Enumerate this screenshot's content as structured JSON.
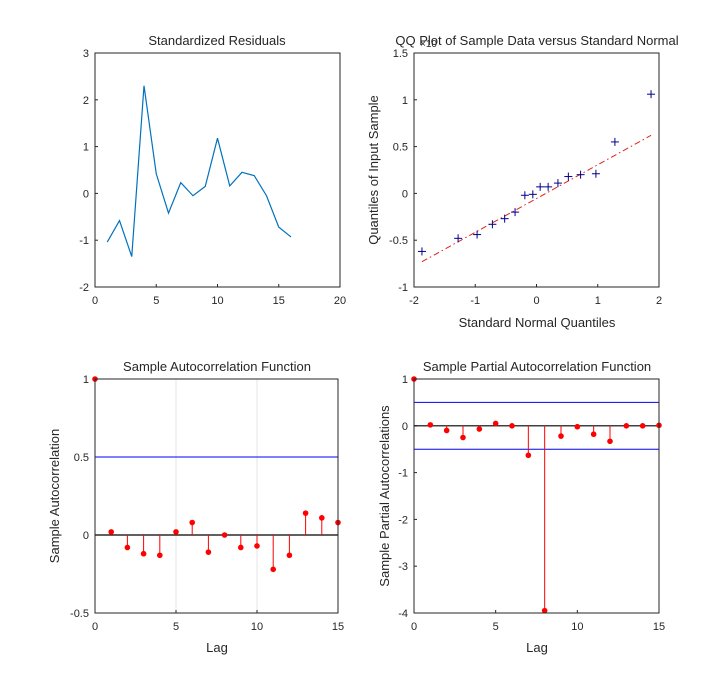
{
  "chart_data": [
    {
      "type": "line",
      "title": "Standardized Residuals",
      "xlabel": "",
      "ylabel": "",
      "xlim": [
        0,
        20
      ],
      "ylim": [
        -2,
        3
      ],
      "xticks": [
        0,
        5,
        10,
        15,
        20
      ],
      "yticks": [
        -2,
        -1,
        0,
        1,
        2,
        3
      ],
      "grid": false,
      "colors": {
        "line": "#0072bd"
      },
      "x": [
        1,
        2,
        3,
        4,
        5,
        6,
        7,
        8,
        9,
        10,
        11,
        12,
        13,
        14,
        15,
        16
      ],
      "values": [
        -1.04,
        -0.58,
        -1.35,
        2.3,
        0.42,
        -0.42,
        0.23,
        -0.05,
        0.15,
        1.18,
        0.16,
        0.45,
        0.38,
        -0.05,
        -0.72,
        -0.93
      ]
    },
    {
      "type": "scatter",
      "title": "QQ Plot of Sample Data versus Standard Normal",
      "xlabel": "Standard Normal Quantiles",
      "ylabel": "Quantiles of Input Sample",
      "exponent_label": "×10",
      "xlim": [
        -2,
        2
      ],
      "ylim": [
        -1,
        1.5
      ],
      "xticks": [
        -2,
        -1,
        0,
        1,
        2
      ],
      "yticks": [
        -1,
        -0.5,
        0,
        0.5,
        1,
        1.5
      ],
      "grid": false,
      "colors": {
        "marker": "#00008b",
        "ref_line": "#e2221a"
      },
      "x": [
        -1.87,
        -1.28,
        -0.97,
        -0.72,
        -0.52,
        -0.35,
        -0.19,
        -0.06,
        0.06,
        0.19,
        0.35,
        0.52,
        0.72,
        0.97,
        1.28,
        1.87
      ],
      "values": [
        -0.62,
        -0.48,
        -0.44,
        -0.33,
        -0.27,
        -0.2,
        -0.02,
        -0.01,
        0.07,
        0.07,
        0.11,
        0.18,
        0.2,
        0.21,
        0.55,
        1.06
      ],
      "ref_line": {
        "x": [
          -1.87,
          1.87
        ],
        "values": [
          -0.73,
          0.62
        ]
      }
    },
    {
      "type": "stem",
      "title": "Sample Autocorrelation Function",
      "xlabel": "Lag",
      "ylabel": "Sample Autocorrelation",
      "xlim": [
        0,
        15
      ],
      "ylim": [
        -0.5,
        1
      ],
      "xticks": [
        0,
        5,
        10,
        15
      ],
      "yticks": [
        -0.5,
        0,
        0.5,
        1
      ],
      "grid": true,
      "colors": {
        "stem": "#ff0000",
        "bounds": "#0000ff"
      },
      "bounds": [
        0.5,
        -0.5
      ],
      "x": [
        0,
        1,
        2,
        3,
        4,
        5,
        6,
        7,
        8,
        9,
        10,
        11,
        12,
        13,
        14,
        15
      ],
      "values": [
        1.0,
        0.02,
        -0.08,
        -0.12,
        -0.13,
        0.02,
        0.08,
        -0.11,
        0.0,
        -0.08,
        -0.07,
        -0.22,
        -0.13,
        0.14,
        0.11,
        0.08
      ]
    },
    {
      "type": "stem",
      "title": "Sample Partial Autocorrelation Function",
      "xlabel": "Lag",
      "ylabel": "Sample Partial Autocorrelations",
      "xlim": [
        0,
        15
      ],
      "ylim": [
        -4,
        1
      ],
      "xticks": [
        0,
        5,
        10,
        15
      ],
      "yticks": [
        -4,
        -3,
        -2,
        -1,
        0,
        1
      ],
      "grid": false,
      "colors": {
        "stem": "#ff0000",
        "bounds": "#0000ff"
      },
      "bounds": [
        0.5,
        -0.5
      ],
      "x": [
        0,
        1,
        2,
        3,
        4,
        5,
        6,
        7,
        8,
        9,
        10,
        11,
        12,
        13,
        14,
        15
      ],
      "values": [
        1.0,
        0.02,
        -0.1,
        -0.25,
        -0.07,
        0.05,
        0.0,
        -0.63,
        -3.95,
        -0.22,
        -0.02,
        -0.18,
        -0.33,
        0.0,
        0.0,
        0.01
      ]
    }
  ]
}
